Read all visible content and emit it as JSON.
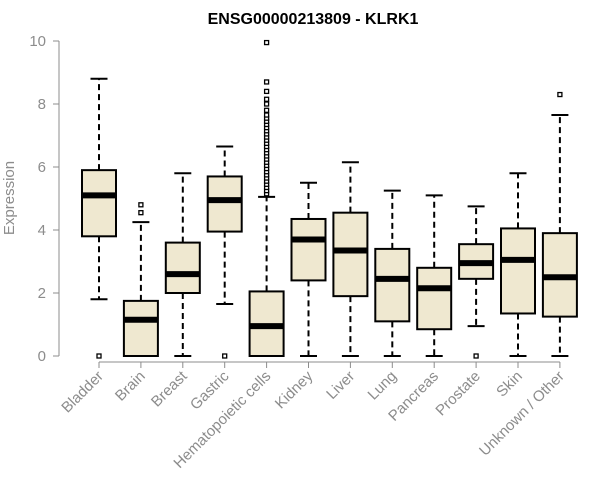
{
  "chart_data": {
    "type": "boxplot",
    "title": "ENSG00000213809 - KLRK1",
    "xlabel": "",
    "ylabel": "Expression",
    "ylim": [
      0,
      10
    ],
    "yticks": [
      "0",
      "2",
      "4",
      "6",
      "8",
      "10"
    ],
    "grid": false,
    "legend": "none",
    "colors": {
      "box_fill": "#efe8d0",
      "box_stroke": "#000000",
      "median": "#000000",
      "axis": "#8c8c8c",
      "text": "#8c8c8c"
    },
    "categories": [
      "Bladder",
      "Brain",
      "Breast",
      "Gastric",
      "Hematopoietic cells",
      "Kidney",
      "Liver",
      "Lung",
      "Pancreas",
      "Prostate",
      "Skin",
      "Unknown / Other"
    ],
    "boxes": [
      {
        "category": "Bladder",
        "whisker_low": 1.8,
        "q1": 3.8,
        "median": 5.1,
        "q3": 5.9,
        "whisker_high": 8.8,
        "outliers": [
          0.0
        ]
      },
      {
        "category": "Brain",
        "whisker_low": 0.0,
        "q1": 0.0,
        "median": 1.15,
        "q3": 1.75,
        "whisker_high": 4.25,
        "outliers": [
          4.55,
          4.8
        ]
      },
      {
        "category": "Breast",
        "whisker_low": 0.0,
        "q1": 2.0,
        "median": 2.6,
        "q3": 3.6,
        "whisker_high": 5.8,
        "outliers": []
      },
      {
        "category": "Gastric",
        "whisker_low": 1.65,
        "q1": 3.95,
        "median": 4.95,
        "q3": 5.7,
        "whisker_high": 6.65,
        "outliers": [
          0.0
        ]
      },
      {
        "category": "Hematopoietic cells",
        "whisker_low": 0.0,
        "q1": 0.0,
        "median": 0.95,
        "q3": 2.05,
        "whisker_high": 5.05,
        "outliers": [
          5.15,
          5.25,
          5.35,
          5.45,
          5.55,
          5.65,
          5.75,
          5.85,
          5.95,
          6.05,
          6.15,
          6.25,
          6.35,
          6.45,
          6.55,
          6.65,
          6.75,
          6.85,
          6.95,
          7.05,
          7.15,
          7.25,
          7.35,
          7.45,
          7.55,
          7.65,
          7.8,
          8.0,
          8.15,
          8.4,
          8.7,
          9.95
        ]
      },
      {
        "category": "Kidney",
        "whisker_low": 0.0,
        "q1": 2.4,
        "median": 3.7,
        "q3": 4.35,
        "whisker_high": 5.5,
        "outliers": []
      },
      {
        "category": "Liver",
        "whisker_low": 0.0,
        "q1": 1.9,
        "median": 3.35,
        "q3": 4.55,
        "whisker_high": 6.15,
        "outliers": []
      },
      {
        "category": "Lung",
        "whisker_low": 0.0,
        "q1": 1.1,
        "median": 2.45,
        "q3": 3.4,
        "whisker_high": 5.25,
        "outliers": []
      },
      {
        "category": "Pancreas",
        "whisker_low": 0.0,
        "q1": 0.85,
        "median": 2.15,
        "q3": 2.8,
        "whisker_high": 5.1,
        "outliers": []
      },
      {
        "category": "Prostate",
        "whisker_low": 0.95,
        "q1": 2.45,
        "median": 2.95,
        "q3": 3.55,
        "whisker_high": 4.75,
        "outliers": [
          0.0
        ]
      },
      {
        "category": "Skin",
        "whisker_low": 0.0,
        "q1": 1.35,
        "median": 3.05,
        "q3": 4.05,
        "whisker_high": 5.8,
        "outliers": []
      },
      {
        "category": "Unknown / Other",
        "whisker_low": 0.0,
        "q1": 1.25,
        "median": 2.5,
        "q3": 3.9,
        "whisker_high": 7.65,
        "outliers": [
          8.3
        ]
      }
    ]
  }
}
